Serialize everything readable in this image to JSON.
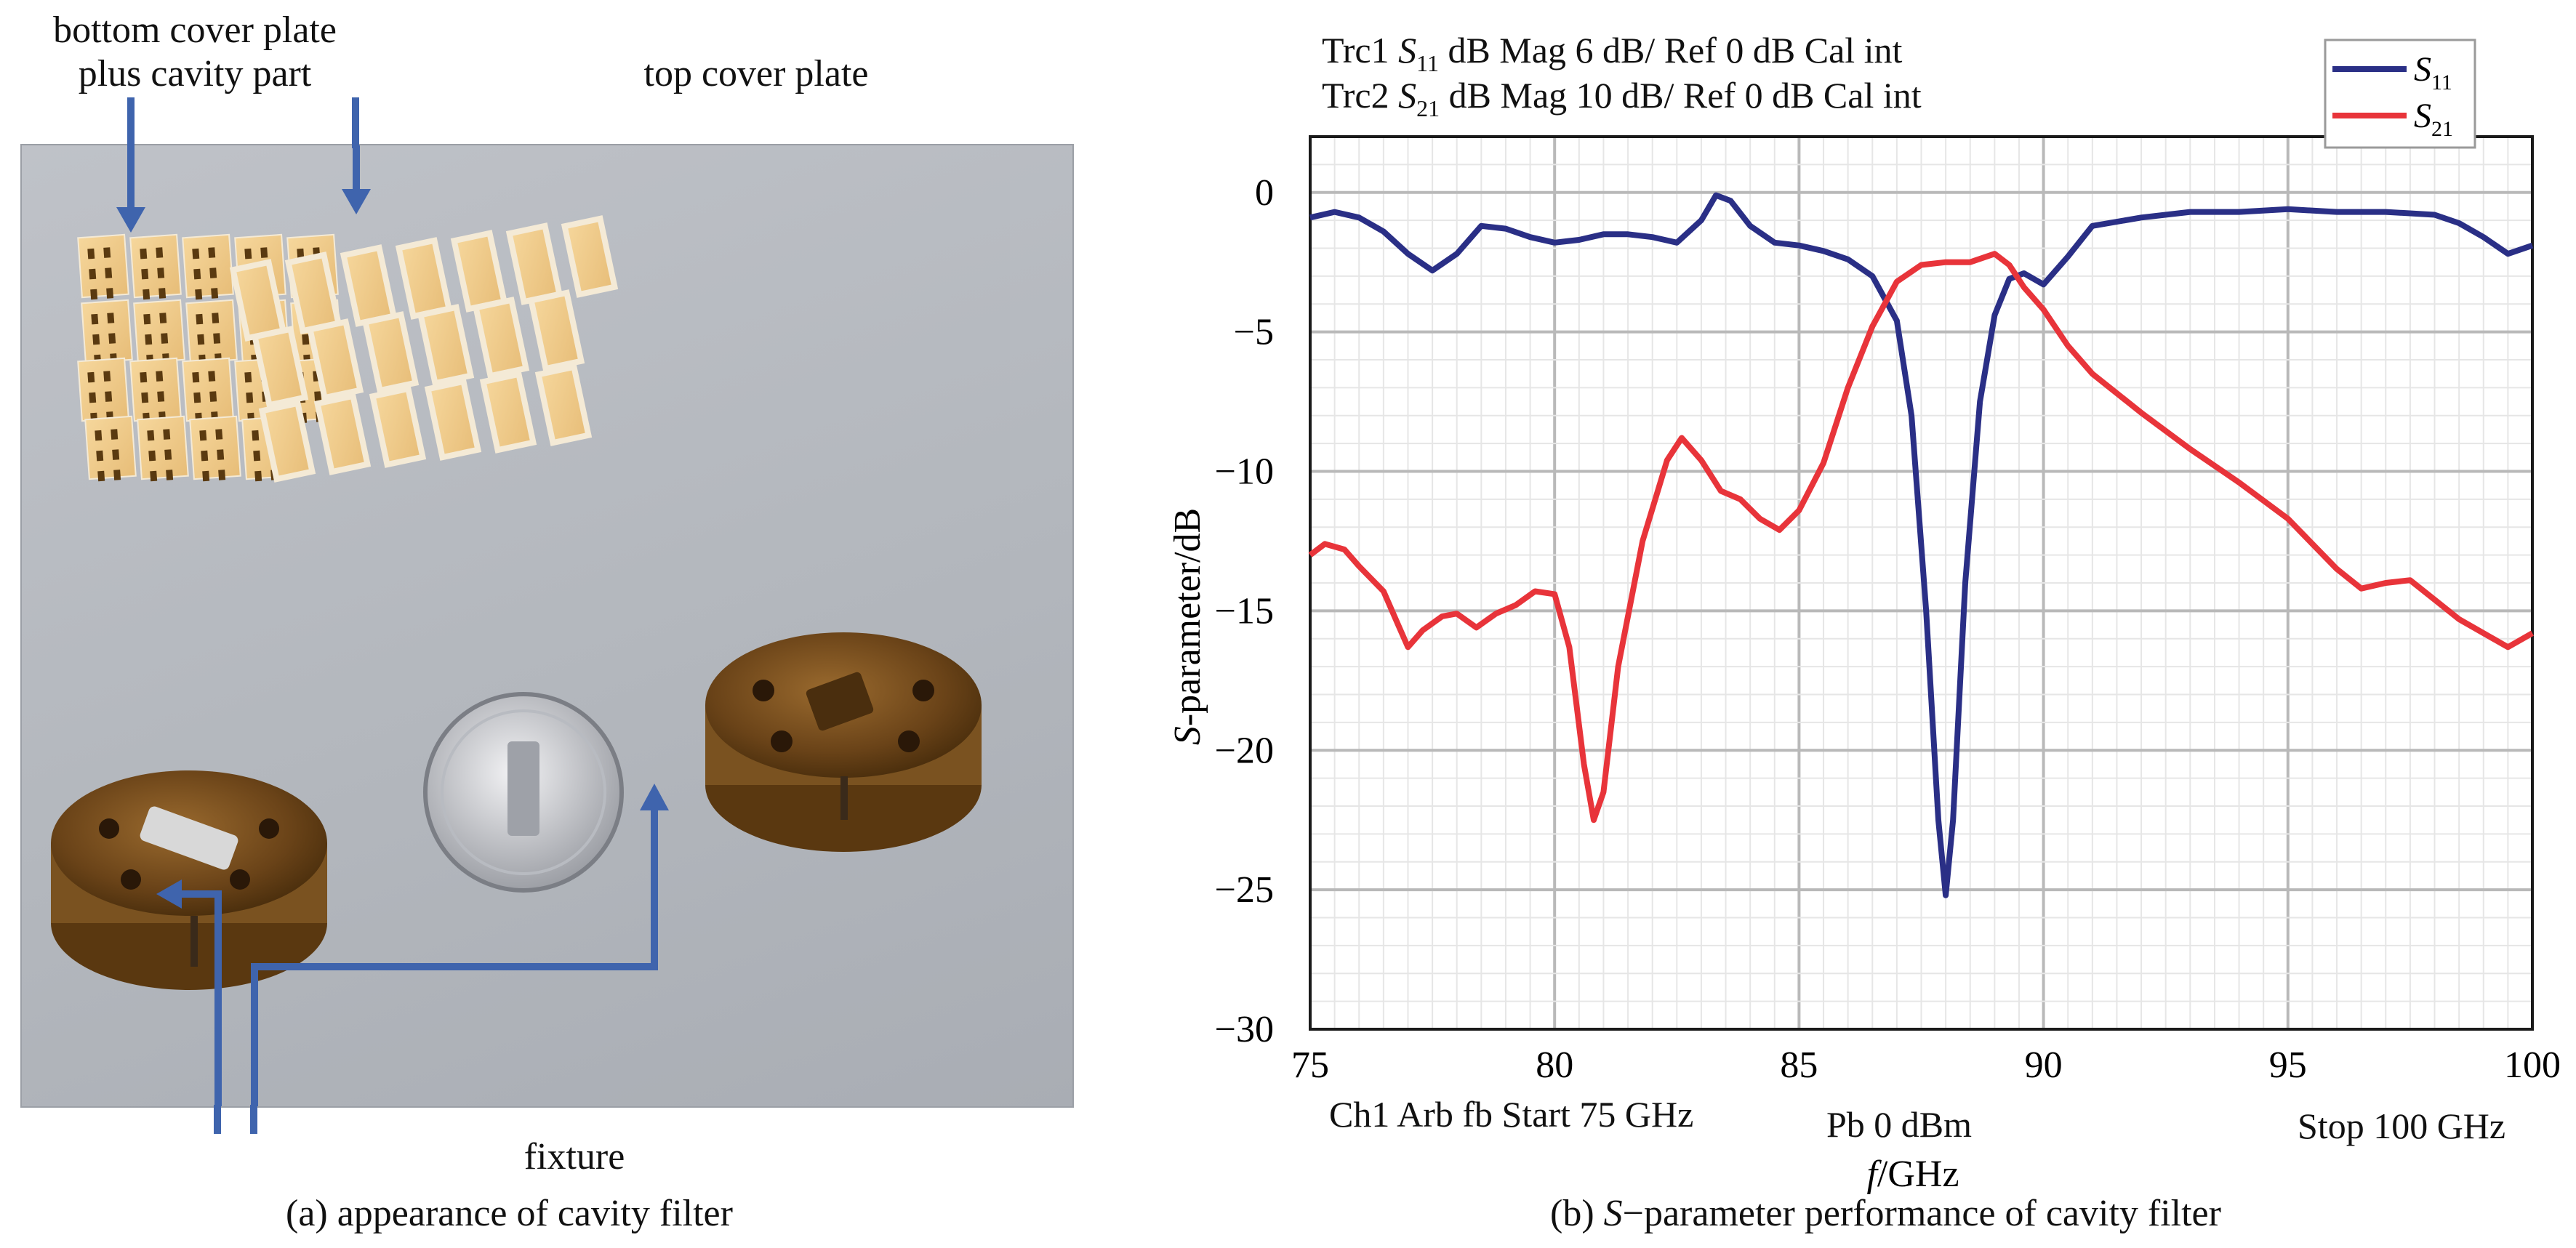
{
  "panel_a": {
    "label_bottom_line1": "bottom cover plate",
    "label_bottom_line2": "plus cavity part",
    "label_top": "top cover plate",
    "label_fixture": "fixture",
    "caption": "(a) appearance of cavity filter"
  },
  "panel_b": {
    "trace1_prefix": "Trc1 ",
    "trace1_param": "S",
    "trace1_sub": "11",
    "trace1_rest": " dB Mag 6 dB/ Ref 0 dB Cal int",
    "trace2_prefix": "Trc2 ",
    "trace2_param": "S",
    "trace2_sub": "21",
    "trace2_rest": " dB Mag 10 dB/ Ref 0 dB Cal int",
    "bottom_left": "Ch1 Arb fb Start 75 GHz",
    "bottom_mid": "Pb 0 dBm",
    "bottom_right": "Stop 100 GHz",
    "caption_prefix": "(b) ",
    "caption_param": "S",
    "caption_rest": "−parameter performance of cavity filter"
  },
  "chart_data": {
    "type": "line",
    "title": "",
    "xlabel": "f/GHz",
    "ylabel": "S-parameter/dB",
    "xlim": [
      75,
      100
    ],
    "ylim": [
      -30,
      2
    ],
    "x_ticks": [
      75,
      80,
      85,
      90,
      95,
      100
    ],
    "y_ticks": [
      0,
      -5,
      -10,
      -15,
      -20,
      -25,
      -30
    ],
    "grid": true,
    "legend_position": "top-right",
    "series": [
      {
        "name": "S11",
        "color": "#2a2f86",
        "points": [
          [
            75,
            -0.9
          ],
          [
            75.5,
            -0.7
          ],
          [
            76,
            -0.9
          ],
          [
            76.5,
            -1.4
          ],
          [
            77,
            -2.2
          ],
          [
            77.5,
            -2.8
          ],
          [
            78,
            -2.2
          ],
          [
            78.5,
            -1.2
          ],
          [
            79,
            -1.3
          ],
          [
            79.5,
            -1.6
          ],
          [
            80,
            -1.8
          ],
          [
            80.5,
            -1.7
          ],
          [
            81,
            -1.5
          ],
          [
            81.5,
            -1.5
          ],
          [
            82,
            -1.6
          ],
          [
            82.5,
            -1.8
          ],
          [
            83,
            -1.0
          ],
          [
            83.3,
            -0.1
          ],
          [
            83.6,
            -0.3
          ],
          [
            84,
            -1.2
          ],
          [
            84.5,
            -1.8
          ],
          [
            85,
            -1.9
          ],
          [
            85.5,
            -2.1
          ],
          [
            86,
            -2.4
          ],
          [
            86.5,
            -3.0
          ],
          [
            87,
            -4.6
          ],
          [
            87.3,
            -8.0
          ],
          [
            87.6,
            -15.0
          ],
          [
            87.85,
            -22.5
          ],
          [
            88,
            -25.2
          ],
          [
            88.15,
            -22.5
          ],
          [
            88.4,
            -14.0
          ],
          [
            88.7,
            -7.5
          ],
          [
            89,
            -4.4
          ],
          [
            89.3,
            -3.1
          ],
          [
            89.6,
            -2.9
          ],
          [
            90,
            -3.3
          ],
          [
            90.5,
            -2.3
          ],
          [
            91,
            -1.2
          ],
          [
            92,
            -0.9
          ],
          [
            93,
            -0.7
          ],
          [
            94,
            -0.7
          ],
          [
            95,
            -0.6
          ],
          [
            96,
            -0.7
          ],
          [
            97,
            -0.7
          ],
          [
            98,
            -0.8
          ],
          [
            98.5,
            -1.1
          ],
          [
            99,
            -1.6
          ],
          [
            99.5,
            -2.2
          ],
          [
            100,
            -1.9
          ]
        ]
      },
      {
        "name": "S21",
        "color": "#e8343a",
        "points": [
          [
            75,
            -13.0
          ],
          [
            75.3,
            -12.6
          ],
          [
            75.7,
            -12.8
          ],
          [
            76,
            -13.4
          ],
          [
            76.5,
            -14.3
          ],
          [
            76.8,
            -15.5
          ],
          [
            77,
            -16.3
          ],
          [
            77.3,
            -15.7
          ],
          [
            77.7,
            -15.2
          ],
          [
            78,
            -15.1
          ],
          [
            78.4,
            -15.6
          ],
          [
            78.8,
            -15.1
          ],
          [
            79.2,
            -14.8
          ],
          [
            79.6,
            -14.3
          ],
          [
            80,
            -14.4
          ],
          [
            80.3,
            -16.3
          ],
          [
            80.6,
            -20.5
          ],
          [
            80.8,
            -22.5
          ],
          [
            81.0,
            -21.5
          ],
          [
            81.3,
            -17.0
          ],
          [
            81.8,
            -12.5
          ],
          [
            82.3,
            -9.6
          ],
          [
            82.6,
            -8.8
          ],
          [
            83,
            -9.6
          ],
          [
            83.4,
            -10.7
          ],
          [
            83.8,
            -11.0
          ],
          [
            84.2,
            -11.7
          ],
          [
            84.6,
            -12.1
          ],
          [
            85,
            -11.4
          ],
          [
            85.5,
            -9.7
          ],
          [
            86,
            -7.0
          ],
          [
            86.5,
            -4.8
          ],
          [
            87,
            -3.2
          ],
          [
            87.5,
            -2.6
          ],
          [
            88,
            -2.5
          ],
          [
            88.5,
            -2.5
          ],
          [
            89,
            -2.2
          ],
          [
            89.3,
            -2.6
          ],
          [
            89.6,
            -3.4
          ],
          [
            90,
            -4.2
          ],
          [
            90.5,
            -5.5
          ],
          [
            91,
            -6.5
          ],
          [
            92,
            -7.9
          ],
          [
            93,
            -9.2
          ],
          [
            94,
            -10.4
          ],
          [
            95,
            -11.7
          ],
          [
            95.5,
            -12.6
          ],
          [
            96,
            -13.5
          ],
          [
            96.5,
            -14.2
          ],
          [
            97,
            -14.0
          ],
          [
            97.5,
            -13.9
          ],
          [
            98,
            -14.6
          ],
          [
            98.5,
            -15.3
          ],
          [
            99,
            -15.8
          ],
          [
            99.5,
            -16.3
          ],
          [
            100,
            -15.8
          ]
        ]
      }
    ]
  }
}
